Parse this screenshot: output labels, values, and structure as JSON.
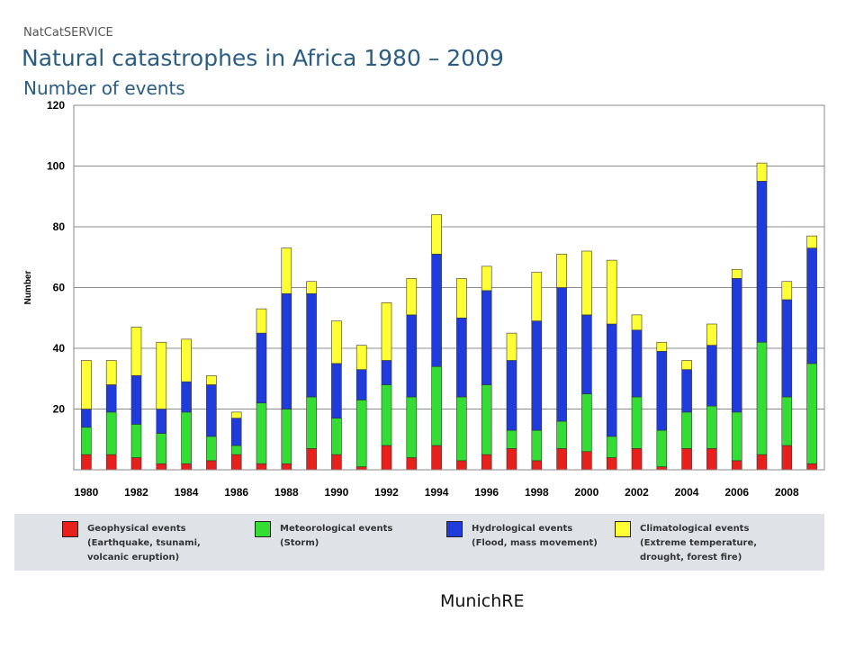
{
  "header": {
    "source": "NatCatSERVICE",
    "title": "Natural catastrophes in Africa 1980 – 2009",
    "subtitle": "Number of events"
  },
  "legend": {
    "items": [
      {
        "line1": "Geophysical events",
        "line2": "(Earthquake, tsunami,",
        "line3": "volcanic eruption)",
        "color": "#e8201c"
      },
      {
        "line1": "Meteorological events",
        "line2": "(Storm)",
        "line3": "",
        "color": "#33dd33"
      },
      {
        "line1": "Hydrological events",
        "line2": "(Flood, mass movement)",
        "line3": "",
        "color": "#1f3bdb"
      },
      {
        "line1": "Climatological events",
        "line2": "(Extreme temperature,",
        "line3": "drought, forest fire)",
        "color": "#ffff33"
      }
    ]
  },
  "logo": "MunichRE",
  "chart_data": {
    "type": "bar",
    "stacked": true,
    "ylabel": "Number",
    "ylim": [
      0,
      120
    ],
    "yticks": [
      20,
      40,
      60,
      80,
      100,
      120
    ],
    "grid": true,
    "categories": [
      "1980",
      "1981",
      "1982",
      "1983",
      "1984",
      "1985",
      "1986",
      "1987",
      "1988",
      "1989",
      "1990",
      "1991",
      "1992",
      "1993",
      "1994",
      "1995",
      "1996",
      "1997",
      "1998",
      "1999",
      "2000",
      "2001",
      "2002",
      "2003",
      "2004",
      "2005",
      "2006",
      "2007",
      "2008",
      "2009"
    ],
    "xtick_labels": [
      "1980",
      "1982",
      "1984",
      "1986",
      "1988",
      "1990",
      "1992",
      "1994",
      "1996",
      "1998",
      "2000",
      "2002",
      "2004",
      "2006",
      "2008"
    ],
    "series": [
      {
        "name": "Geophysical events",
        "color": "#e8201c",
        "values": [
          5,
          5,
          4,
          2,
          2,
          3,
          5,
          2,
          2,
          7,
          5,
          1,
          8,
          4,
          8,
          3,
          5,
          7,
          3,
          7,
          6,
          4,
          7,
          1,
          7,
          7,
          3,
          5,
          8,
          2
        ]
      },
      {
        "name": "Meteorological events",
        "color": "#33dd33",
        "values": [
          9,
          14,
          11,
          10,
          17,
          8,
          3,
          20,
          18,
          17,
          12,
          22,
          20,
          20,
          26,
          21,
          23,
          6,
          10,
          9,
          19,
          7,
          17,
          12,
          12,
          14,
          16,
          37,
          16,
          33
        ]
      },
      {
        "name": "Hydrological events",
        "color": "#1f3bdb",
        "values": [
          6,
          9,
          16,
          8,
          10,
          17,
          9,
          23,
          38,
          34,
          18,
          10,
          8,
          27,
          37,
          26,
          31,
          23,
          36,
          44,
          26,
          37,
          22,
          26,
          14,
          20,
          44,
          53,
          32,
          38
        ]
      },
      {
        "name": "Climatological events",
        "color": "#ffff33",
        "values": [
          16,
          8,
          16,
          22,
          14,
          3,
          2,
          8,
          15,
          4,
          14,
          8,
          19,
          12,
          13,
          13,
          8,
          9,
          16,
          11,
          21,
          21,
          5,
          3,
          3,
          7,
          3,
          6,
          6,
          4
        ]
      }
    ]
  }
}
